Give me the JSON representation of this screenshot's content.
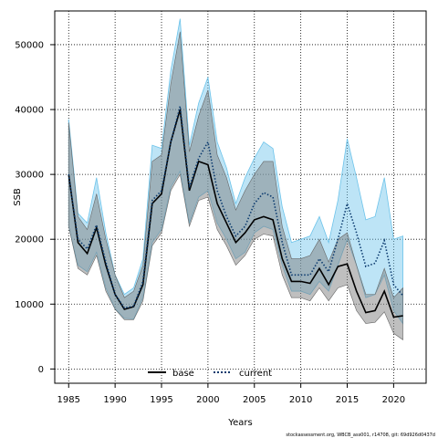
{
  "chart_data": {
    "type": "line",
    "xlabel": "Years",
    "ylabel": "SSB",
    "xlim": [
      1983.5,
      2023.5
    ],
    "ylim": [
      -2200,
      55200
    ],
    "x_ticks": [
      1985,
      1990,
      1995,
      2000,
      2005,
      2010,
      2015,
      2020
    ],
    "y_ticks": [
      0,
      10000,
      20000,
      30000,
      40000,
      50000
    ],
    "grid": true,
    "legend_position": "bottom",
    "x": [
      1985,
      1986,
      1987,
      1988,
      1989,
      1990,
      1991,
      1992,
      1993,
      1994,
      1995,
      1996,
      1997,
      1998,
      1999,
      2000,
      2001,
      2002,
      2003,
      2004,
      2005,
      2006,
      2007,
      2008,
      2009,
      2010,
      2011,
      2012,
      2013,
      2014,
      2015,
      2016,
      2017,
      2018,
      2019,
      2020,
      2021
    ],
    "series": [
      {
        "name": "base",
        "color": "#000000",
        "band_color": "#808080",
        "line_style": "solid",
        "values": [
          30000,
          19500,
          17800,
          21800,
          16000,
          11500,
          9200,
          9600,
          13000,
          25500,
          27000,
          35000,
          40000,
          27500,
          32000,
          31500,
          25500,
          22500,
          19500,
          21000,
          23000,
          23500,
          23000,
          17000,
          13500,
          13500,
          13200,
          15500,
          13000,
          15800,
          16200,
          12000,
          8700,
          9000,
          12000,
          8000,
          8200
        ],
        "lower": [
          22000,
          15500,
          14500,
          17500,
          12000,
          9200,
          7600,
          7600,
          10500,
          19000,
          21000,
          27500,
          30000,
          22000,
          26000,
          26500,
          21500,
          19000,
          16000,
          17500,
          20000,
          20800,
          20500,
          14500,
          11000,
          11000,
          10500,
          12500,
          10500,
          12500,
          13000,
          9000,
          7000,
          7200,
          8800,
          5500,
          4500
        ],
        "upper": [
          38000,
          23500,
          21500,
          27000,
          20000,
          14500,
          11000,
          12000,
          16000,
          32000,
          33000,
          44000,
          52000,
          33500,
          39000,
          43000,
          33000,
          29500,
          24500,
          27500,
          30000,
          32000,
          32000,
          22000,
          17000,
          17000,
          17500,
          20000,
          16500,
          20000,
          21000,
          16000,
          11500,
          11500,
          15500,
          11000,
          12500
        ]
      },
      {
        "name": "current",
        "color": "#0b3a6e",
        "band_color": "#6cc3ea",
        "line_style": "dotted",
        "values": [
          30000,
          20000,
          18500,
          22200,
          16500,
          11500,
          9400,
          9700,
          13500,
          26000,
          27500,
          35000,
          40500,
          28000,
          32500,
          35000,
          27500,
          23500,
          20500,
          22000,
          25500,
          27200,
          26500,
          19500,
          14500,
          14500,
          14500,
          17000,
          15000,
          20000,
          25500,
          21000,
          15800,
          16300,
          19800,
          13000,
          11300
        ],
        "lower": [
          22000,
          16000,
          15000,
          18000,
          12500,
          9300,
          7800,
          7700,
          11000,
          19500,
          21500,
          28000,
          30500,
          22500,
          26500,
          27500,
          22500,
          20000,
          17000,
          18000,
          21000,
          22000,
          21500,
          16000,
          12000,
          12000,
          11500,
          13500,
          12000,
          16000,
          20000,
          16000,
          11000,
          11500,
          14500,
          9000,
          7000
        ],
        "upper": [
          38500,
          24000,
          22500,
          29500,
          21000,
          14500,
          11500,
          12500,
          17000,
          34500,
          34000,
          46000,
          54000,
          34500,
          41000,
          45000,
          35000,
          31000,
          25500,
          29500,
          32500,
          35000,
          34000,
          25000,
          19500,
          20000,
          20500,
          23500,
          19500,
          26000,
          35500,
          29500,
          23000,
          23500,
          29500,
          20000,
          20500
        ]
      }
    ]
  },
  "footer": "stockassessment.org, WBCB_ass001, r14708, git: 69d926d0437d"
}
